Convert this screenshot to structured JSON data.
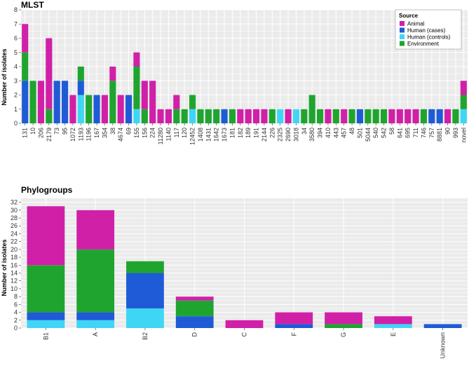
{
  "colors": {
    "Animal": "#d020a8",
    "Human (cases)": "#1f5bd6",
    "Human (controls)": "#3fd6f5",
    "Environment": "#1fa52f",
    "panel_bg": "#ebebeb",
    "grid": "#ffffff"
  },
  "legend": {
    "title": "Source",
    "entries": [
      "Animal",
      "Human (cases)",
      "Human (controls)",
      "Environment"
    ]
  },
  "chart_data": [
    {
      "type": "bar",
      "stacked": true,
      "title": "MLST",
      "xlabel": "",
      "ylabel": "Number of isolates",
      "ylim": [
        0,
        8
      ],
      "yticks": [
        0,
        1,
        2,
        3,
        4,
        5,
        6,
        7,
        8
      ],
      "grid": true,
      "legend_position": "top-right",
      "categories": [
        "131",
        "10",
        "206",
        "2179",
        "73",
        "95",
        "1072",
        "1193",
        "1196",
        "167",
        "354",
        "38",
        "4674",
        "69",
        "155",
        "156",
        "224",
        "11280",
        "1140",
        "117",
        "120",
        "12452",
        "1408",
        "1431",
        "1642",
        "1673",
        "181",
        "182",
        "189",
        "191",
        "2144",
        "226",
        "2325",
        "2690",
        "3018",
        "34",
        "3580",
        "394",
        "410",
        "443",
        "457",
        "48",
        "501",
        "5044",
        "540",
        "542",
        "58",
        "641",
        "695",
        "711",
        "746",
        "757",
        "8881",
        "90",
        "993",
        "novel"
      ],
      "series": [
        {
          "name": "Human (controls)",
          "values": [
            0,
            0,
            0,
            0,
            0,
            0,
            0,
            2,
            0,
            0,
            0,
            0,
            0,
            0,
            1,
            0,
            0,
            0,
            0,
            0,
            0,
            1,
            0,
            0,
            0,
            0,
            0,
            0,
            0,
            0,
            0,
            0,
            1,
            0,
            1,
            0,
            0,
            0,
            0,
            0,
            0,
            0,
            0,
            0,
            0,
            0,
            0,
            0,
            0,
            0,
            0,
            0,
            0,
            0,
            0,
            1
          ]
        },
        {
          "name": "Human (cases)",
          "values": [
            3,
            0,
            0,
            0,
            3,
            3,
            0,
            1,
            0,
            2,
            0,
            0,
            0,
            2,
            0,
            0,
            0,
            0,
            0,
            0,
            0,
            0,
            0,
            0,
            0,
            1,
            0,
            0,
            0,
            0,
            0,
            0,
            0,
            0,
            0,
            0,
            0,
            0,
            0,
            0,
            0,
            0,
            1,
            0,
            0,
            0,
            0,
            0,
            0,
            0,
            0,
            1,
            1,
            0,
            0,
            0
          ]
        },
        {
          "name": "Environment",
          "values": [
            2,
            3,
            0,
            1,
            0,
            0,
            0,
            1,
            2,
            0,
            0,
            3,
            0,
            0,
            3,
            1,
            0,
            0,
            0,
            1,
            1,
            1,
            1,
            1,
            1,
            0,
            1,
            0,
            0,
            0,
            0,
            1,
            0,
            0,
            0,
            1,
            2,
            1,
            0,
            1,
            0,
            1,
            0,
            1,
            1,
            1,
            0,
            0,
            0,
            0,
            1,
            0,
            0,
            0,
            1,
            1
          ]
        },
        {
          "name": "Animal",
          "values": [
            2,
            0,
            3,
            5,
            0,
            0,
            2,
            0,
            0,
            0,
            2,
            1,
            2,
            0,
            1,
            2,
            3,
            1,
            1,
            1,
            0,
            0,
            0,
            0,
            0,
            0,
            0,
            1,
            1,
            1,
            1,
            0,
            0,
            1,
            0,
            0,
            0,
            0,
            1,
            0,
            1,
            0,
            0,
            0,
            0,
            0,
            1,
            1,
            1,
            1,
            0,
            0,
            0,
            1,
            0,
            1
          ]
        }
      ]
    },
    {
      "type": "bar",
      "stacked": true,
      "title": "Phylogroups",
      "xlabel": "",
      "ylabel": "Number of isolates",
      "ylim": [
        0,
        33
      ],
      "yticks": [
        0,
        2,
        4,
        6,
        8,
        10,
        12,
        14,
        16,
        18,
        20,
        22,
        24,
        26,
        28,
        30,
        32
      ],
      "grid": true,
      "categories": [
        "B1",
        "A",
        "B2",
        "D",
        "C",
        "F",
        "G",
        "E",
        "Unknown"
      ],
      "series": [
        {
          "name": "Human (controls)",
          "values": [
            2,
            2,
            5,
            0,
            0,
            0,
            0,
            1,
            0
          ]
        },
        {
          "name": "Human (cases)",
          "values": [
            2,
            2,
            9,
            3,
            0,
            1,
            0,
            0,
            1
          ]
        },
        {
          "name": "Environment",
          "values": [
            12,
            16,
            3,
            4,
            0,
            0,
            1,
            0,
            0
          ]
        },
        {
          "name": "Animal",
          "values": [
            15,
            10,
            0,
            1,
            2,
            3,
            3,
            2,
            0
          ]
        }
      ]
    }
  ]
}
